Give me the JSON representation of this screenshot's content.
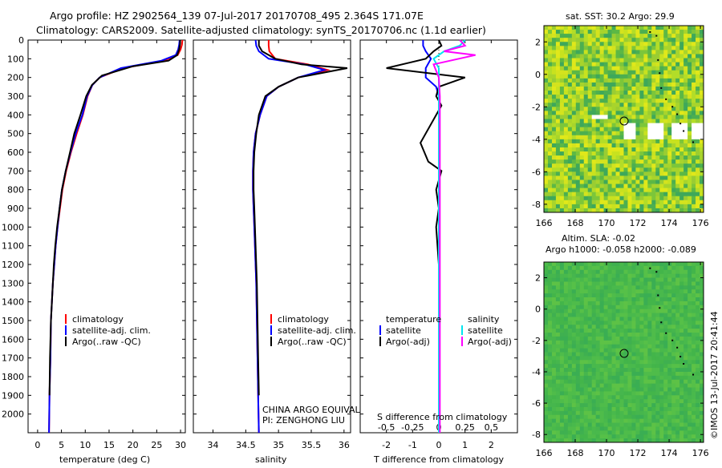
{
  "header": {
    "line1": "Argo profile: HZ 2902564_139 07-Jul-2017 20170708_495 2.364S 171.07E",
    "line2": "Climatology: CARS2009. Satellite-adjusted climatology: synTS_20170706.nc (1.1d earlier)"
  },
  "colors": {
    "climatology": "#ff0000",
    "satellite": "#0000ff",
    "argo": "#000000",
    "s_satellite": "#00e5ee",
    "s_argo": "#ff00ff"
  },
  "y_depth_ticks": [
    "0",
    "100",
    "200",
    "300",
    "400",
    "500",
    "600",
    "700",
    "800",
    "900",
    "1000",
    "1100",
    "1200",
    "1300",
    "1400",
    "1500",
    "1600",
    "1700",
    "1800",
    "1900",
    "2000"
  ],
  "panel_t": {
    "xlabel": "temperature (deg C)",
    "x_ticks": [
      "0",
      "5",
      "10",
      "15",
      "20",
      "25",
      "30"
    ],
    "legend": [
      "climatology",
      "satellite-adj. clim.",
      "Argo(..raw -QC)"
    ]
  },
  "panel_s": {
    "xlabel": "salinity",
    "x_ticks": [
      "34",
      "34.5",
      "35",
      "35.5",
      "36"
    ],
    "legend": [
      "climatology",
      "satellite-adj. clim.",
      "Argo(..raw -QC)"
    ],
    "note1": "CHINA ARGO EQUIVALENT",
    "note2": "PI: ZENGHONG LIU"
  },
  "panel_d": {
    "top_label": "S difference from climatology",
    "top_ticks": [
      "-0.5",
      "-0.25",
      "0",
      "0.25",
      "0.5"
    ],
    "bottom_ticks": [
      "-2",
      "-1",
      "0",
      "1",
      "2"
    ],
    "xlabel": "T difference from climatology",
    "legend_t_head": "temperature",
    "legend_s_head": "salinity",
    "legend_rows": [
      "satellite",
      "Argo(-adj)"
    ]
  },
  "map_sst": {
    "title": "sat. SST: 30.2  Argo: 29.9",
    "y_ticks": [
      "2",
      "0",
      "-2",
      "-4",
      "-6",
      "-8"
    ],
    "x_ticks": [
      "166",
      "168",
      "170",
      "172",
      "174",
      "176"
    ]
  },
  "map_sla": {
    "title1": "Altim. SLA: -0.02",
    "title2": "Argo h1000: -0.058 h2000: -0.089",
    "y_ticks": [
      "2",
      "0",
      "-2",
      "-4",
      "-6",
      "-8"
    ],
    "x_ticks": [
      "166",
      "168",
      "170",
      "172",
      "174",
      "176"
    ]
  },
  "footer": {
    "credit": "©IMOS 13-Jul-2017 20:41:44"
  },
  "chart_data": [
    {
      "type": "line",
      "title": "",
      "xlabel": "temperature (deg C)",
      "ylabel": "",
      "xlim": [
        -2,
        31
      ],
      "ylim": [
        2100,
        0
      ],
      "series": [
        {
          "name": "climatology",
          "x": [
            30.4,
            30.3,
            30.0,
            29.4,
            26.5,
            18.0,
            13.0,
            11.5,
            10.5,
            9.5,
            8.2,
            7.0,
            6.0,
            5.2,
            4.7,
            4.2,
            3.8,
            3.5,
            3.2,
            3.0,
            2.8,
            2.7,
            2.5,
            2.4
          ],
          "y": [
            0,
            25,
            50,
            80,
            110,
            150,
            200,
            240,
            300,
            400,
            500,
            600,
            700,
            800,
            900,
            1000,
            1100,
            1200,
            1300,
            1400,
            1500,
            1700,
            1900,
            2100
          ]
        },
        {
          "name": "satellite-adj. clim.",
          "x": [
            29.8,
            29.7,
            29.5,
            29.0,
            26.0,
            17.5,
            13.0,
            11.5,
            10.4,
            9.4,
            8.0,
            6.9,
            5.9,
            5.1,
            4.6,
            4.2,
            3.8,
            3.5,
            3.2,
            3.0,
            2.8,
            2.7,
            2.5,
            2.4
          ],
          "y": [
            0,
            25,
            50,
            80,
            110,
            150,
            200,
            240,
            300,
            400,
            500,
            600,
            700,
            800,
            900,
            1000,
            1100,
            1200,
            1300,
            1400,
            1500,
            1700,
            1900,
            2100
          ]
        },
        {
          "name": "Argo(..raw -QC)",
          "x": [
            29.9,
            29.9,
            29.7,
            29.3,
            27.5,
            20.0,
            13.5,
            11.4,
            10.2,
            9.0,
            7.7,
            6.8,
            5.9,
            5.1,
            4.6,
            4.1,
            3.7,
            3.4,
            3.2,
            3.0,
            2.8,
            2.6,
            2.5
          ],
          "y": [
            0,
            20,
            50,
            80,
            110,
            140,
            190,
            240,
            300,
            400,
            500,
            600,
            700,
            800,
            900,
            1000,
            1100,
            1200,
            1300,
            1400,
            1500,
            1700,
            1900
          ]
        }
      ]
    },
    {
      "type": "line",
      "title": "",
      "xlabel": "salinity",
      "ylabel": "",
      "xlim": [
        33.7,
        36.1
      ],
      "ylim": [
        2100,
        0
      ],
      "series": [
        {
          "name": "climatology",
          "x": [
            34.85,
            34.85,
            34.86,
            34.95,
            35.45,
            35.75,
            35.3,
            35.0,
            34.82,
            34.72,
            34.65,
            34.62,
            34.61,
            34.61,
            34.62,
            34.63,
            34.64,
            34.65,
            34.66,
            34.67,
            34.68,
            34.69,
            34.7
          ],
          "y": [
            0,
            30,
            60,
            100,
            130,
            160,
            200,
            250,
            300,
            400,
            500,
            600,
            700,
            800,
            900,
            1000,
            1100,
            1200,
            1300,
            1500,
            1700,
            1900,
            2100
          ]
        },
        {
          "name": "satellite-adj. clim.",
          "x": [
            34.65,
            34.66,
            34.7,
            34.85,
            35.4,
            35.7,
            35.3,
            35.0,
            34.82,
            34.72,
            34.65,
            34.62,
            34.61,
            34.61,
            34.62,
            34.63,
            34.64,
            34.65,
            34.66,
            34.67,
            34.68,
            34.69,
            34.7
          ],
          "y": [
            0,
            30,
            60,
            100,
            130,
            160,
            200,
            250,
            300,
            400,
            500,
            600,
            700,
            800,
            900,
            1000,
            1100,
            1200,
            1300,
            1500,
            1700,
            1900,
            2100
          ]
        },
        {
          "name": "Argo(..raw -QC)",
          "x": [
            34.7,
            34.7,
            34.75,
            34.95,
            35.35,
            36.05,
            35.3,
            35.0,
            34.8,
            34.7,
            34.66,
            34.63,
            34.62,
            34.62,
            34.63,
            34.64,
            34.65,
            34.66,
            34.67,
            34.68,
            34.69,
            34.7
          ],
          "y": [
            0,
            30,
            60,
            100,
            130,
            150,
            200,
            250,
            300,
            400,
            500,
            600,
            700,
            800,
            900,
            1000,
            1100,
            1200,
            1300,
            1500,
            1700,
            1900
          ]
        }
      ]
    },
    {
      "type": "line",
      "title": "",
      "xlabel": "T difference from climatology",
      "ylabel": "",
      "xlim": [
        -3,
        3
      ],
      "ylim": [
        2100,
        0
      ],
      "x2label": "S difference from climatology",
      "x2lim": [
        -0.75,
        0.75
      ],
      "series": [
        {
          "name": "temperature satellite",
          "axis": "T",
          "x": [
            -0.6,
            -0.6,
            -0.5,
            -0.3,
            -0.5,
            -0.5,
            -0.1,
            0.0,
            0.0,
            0.0,
            0.0,
            0.0,
            0.0,
            0.0,
            0.0,
            0.0,
            0.0,
            0.0,
            0.0,
            0.0
          ],
          "y": [
            0,
            30,
            60,
            100,
            150,
            200,
            250,
            300,
            400,
            500,
            600,
            700,
            800,
            900,
            1000,
            1100,
            1200,
            1500,
            1800,
            2100
          ]
        },
        {
          "name": "temperature Argo(-adj)",
          "axis": "T",
          "x": [
            0.0,
            0.1,
            -0.2,
            -0.5,
            -2.0,
            1.0,
            0.0,
            -0.1,
            0.1,
            -0.3,
            -0.7,
            -0.4,
            0.1,
            -0.1,
            0.0,
            -0.1,
            0.0,
            0.0,
            0.0,
            0.0
          ],
          "y": [
            0,
            30,
            60,
            100,
            150,
            200,
            250,
            300,
            350,
            450,
            550,
            650,
            700,
            800,
            900,
            1000,
            1200,
            1500,
            1800,
            2100
          ]
        },
        {
          "name": "salinity satellite",
          "axis": "S",
          "x": [
            0.25,
            0.2,
            0.05,
            -0.05,
            0.0,
            0.0,
            0.0,
            0.0,
            0.0,
            0.0,
            0.0,
            0.0,
            0.0,
            0.0
          ],
          "y": [
            0,
            30,
            60,
            100,
            150,
            200,
            300,
            400,
            600,
            800,
            1000,
            1400,
            1800,
            2100
          ]
        },
        {
          "name": "salinity Argo(-adj)",
          "axis": "S",
          "x": [
            0.2,
            0.25,
            0.05,
            0.35,
            -0.05,
            0.0,
            0.01,
            0.01,
            0.01,
            0.01,
            0.01,
            0.01,
            0.01,
            0.01
          ],
          "y": [
            0,
            30,
            60,
            80,
            130,
            200,
            300,
            400,
            600,
            800,
            1000,
            1400,
            1800,
            2100
          ]
        }
      ]
    }
  ]
}
